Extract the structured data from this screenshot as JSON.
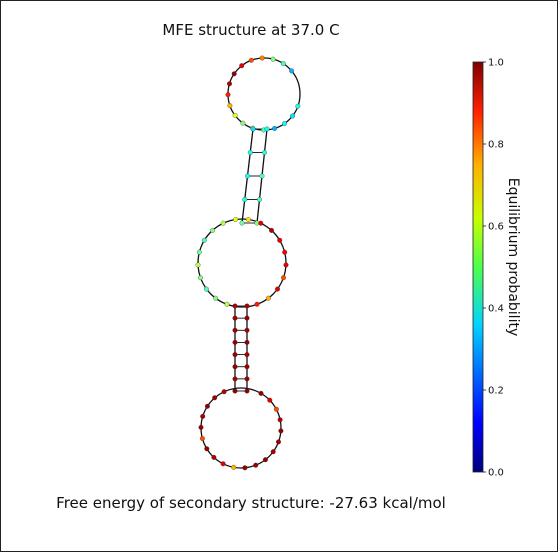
{
  "title": "MFE structure at 37.0 C",
  "footer": "Free energy of secondary structure: -27.63 kcal/mol",
  "colorbar": {
    "label": "Equilibrium probability",
    "ticks": [
      "0.0",
      "0.2",
      "0.4",
      "0.6",
      "0.8",
      "1.0"
    ],
    "colormap": "jet"
  },
  "structure": {
    "top_loop_probs": [
      0.4,
      0.35,
      0.38,
      0.3,
      0.45,
      0.55,
      0.5,
      0.6,
      0.7,
      0.85,
      0.95,
      0.98,
      0.9,
      0.8,
      0.75,
      0.5,
      0.45,
      0.3
    ],
    "upper_stem_probs": [
      0.35,
      0.38,
      0.4,
      0.42,
      0.4,
      0.45,
      0.4,
      0.45,
      0.48,
      0.5
    ],
    "middle_loop_probs": [
      0.55,
      0.5,
      0.45,
      0.5,
      0.55,
      0.48,
      0.45,
      0.5,
      0.55,
      0.6,
      0.65,
      0.9,
      0.95,
      0.9,
      0.88,
      0.9,
      0.8,
      0.9,
      0.7,
      0.85
    ],
    "lower_stem_probs": [
      0.95,
      0.96,
      0.97,
      0.98,
      0.97,
      0.96,
      0.97,
      0.98,
      0.97,
      0.96,
      0.98,
      0.97,
      0.96,
      0.97,
      0.98
    ],
    "bottom_loop_probs": [
      0.98,
      0.9,
      0.8,
      0.95,
      0.98,
      0.97,
      0.96,
      0.98,
      0.97,
      0.98,
      0.7,
      0.9,
      0.95,
      0.98,
      0.8,
      0.97,
      0.96,
      0.98,
      0.97,
      0.95
    ]
  }
}
